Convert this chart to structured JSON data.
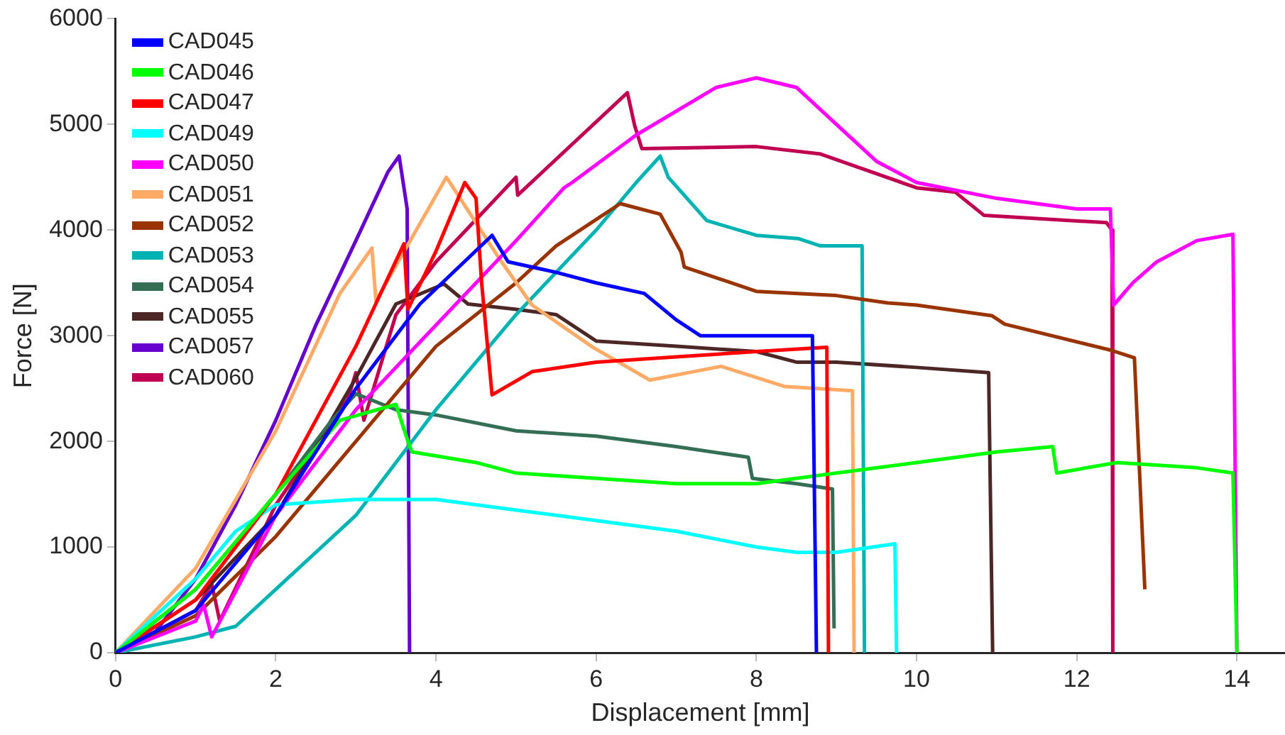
{
  "chart_data": {
    "type": "line",
    "xlabel": "Displacement [mm]",
    "ylabel": "Force [N]",
    "xlim": [
      0,
      14.6
    ],
    "xticks": [
      0,
      2,
      4,
      6,
      8,
      10,
      12,
      14
    ],
    "ylim": [
      0,
      6000
    ],
    "yticks": [
      0,
      1000,
      2000,
      3000,
      4000,
      5000,
      6000
    ],
    "grid": false,
    "legend": "top left",
    "marker": "none",
    "line_style": "solid",
    "series": [
      {
        "name": "CAD045",
        "color": "#0000ff",
        "x": [
          0,
          1,
          2,
          3,
          3.8,
          4.7,
          4.9,
          5.5,
          6,
          6.6,
          7,
          7.3,
          8,
          8.7,
          8.75
        ],
        "values": [
          0,
          400,
          1300,
          2500,
          3300,
          3950,
          3700,
          3600,
          3500,
          3400,
          3150,
          3000,
          3000,
          3000,
          0
        ]
      },
      {
        "name": "CAD046",
        "color": "#00ff00",
        "x": [
          0,
          1,
          2,
          2.8,
          3.5,
          3.65,
          3.7,
          4.5,
          5,
          6,
          7,
          8,
          9,
          10,
          11,
          11.7,
          11.75,
          12.5,
          13.5,
          13.95,
          14
        ],
        "values": [
          0,
          600,
          1500,
          2200,
          2350,
          2000,
          1900,
          1800,
          1700,
          1650,
          1600,
          1600,
          1700,
          1800,
          1900,
          1950,
          1700,
          1800,
          1750,
          1700,
          0
        ]
      },
      {
        "name": "CAD047",
        "color": "#ff0000",
        "x": [
          0,
          1,
          2,
          3,
          3.6,
          3.65,
          4,
          4.36,
          4.5,
          4.57,
          4.7,
          5.2,
          6,
          7,
          8,
          8.88,
          8.9
        ],
        "values": [
          0,
          500,
          1500,
          2900,
          3870,
          3250,
          3800,
          4450,
          4300,
          3500,
          2440,
          2660,
          2750,
          2800,
          2850,
          2890,
          0
        ]
      },
      {
        "name": "CAD049",
        "color": "#00ffff",
        "x": [
          0,
          1,
          1.5,
          2,
          3,
          4,
          5,
          6,
          7,
          8,
          8.5,
          9,
          9.73,
          9.75
        ],
        "values": [
          0,
          700,
          1150,
          1400,
          1450,
          1450,
          1350,
          1250,
          1150,
          1000,
          950,
          950,
          1030,
          0
        ]
      },
      {
        "name": "CAD050",
        "color": "#ff00ff",
        "x": [
          0,
          1,
          1.1,
          1.2,
          2,
          3,
          4,
          5,
          5.6,
          5.7,
          6.5,
          7.5,
          8,
          8.5,
          9,
          9.5,
          10,
          11,
          12,
          12.42,
          12.46,
          12.7,
          13,
          13.5,
          13.95,
          14
        ],
        "values": [
          0,
          300,
          450,
          150,
          1300,
          2300,
          3100,
          3900,
          4400,
          4450,
          4900,
          5350,
          5440,
          5350,
          5000,
          4650,
          4450,
          4300,
          4200,
          4200,
          3290,
          3500,
          3700,
          3900,
          3960,
          0
        ]
      },
      {
        "name": "CAD051",
        "color": "#ffaa66",
        "x": [
          0,
          1,
          2,
          2.8,
          3.2,
          3.25,
          4.13,
          4.79,
          5.2,
          5.96,
          6.67,
          7.56,
          8.35,
          9.2,
          9.22
        ],
        "values": [
          0,
          800,
          2100,
          3400,
          3830,
          3330,
          4500,
          3730,
          3290,
          2890,
          2580,
          2710,
          2520,
          2480,
          0
        ]
      },
      {
        "name": "CAD052",
        "color": "#993300",
        "x": [
          0,
          1,
          2,
          3,
          4,
          5,
          5.5,
          6,
          6.3,
          6.8,
          7.06,
          7.1,
          8,
          9,
          9.64,
          10,
          10.94,
          11.1,
          12.44,
          12.72,
          12.85
        ],
        "values": [
          0,
          350,
          1100,
          2000,
          2900,
          3500,
          3850,
          4100,
          4250,
          4150,
          3790,
          3650,
          3420,
          3380,
          3310,
          3290,
          3190,
          3110,
          2860,
          2790,
          600
        ]
      },
      {
        "name": "CAD053",
        "color": "#00b3b3",
        "x": [
          0,
          1,
          1.5,
          2,
          3,
          4,
          5,
          6,
          6.5,
          6.8,
          6.9,
          7.38,
          8,
          8.52,
          8.8,
          9.32,
          9.35
        ],
        "values": [
          0,
          150,
          250,
          600,
          1300,
          2300,
          3200,
          4000,
          4450,
          4700,
          4500,
          4090,
          3950,
          3920,
          3850,
          3850,
          0
        ]
      },
      {
        "name": "CAD054",
        "color": "#336e55",
        "x": [
          0,
          1,
          2,
          2.7,
          3,
          3.5,
          4,
          5,
          6,
          7,
          7.9,
          7.95,
          8.5,
          8.95,
          8.97
        ],
        "values": [
          0,
          600,
          1500,
          2200,
          2450,
          2300,
          2250,
          2100,
          2050,
          1950,
          1850,
          1650,
          1600,
          1550,
          230
        ]
      },
      {
        "name": "CAD055",
        "color": "#4d2626",
        "x": [
          0,
          1,
          2,
          3,
          3.5,
          4.1,
          4.4,
          5,
          5.5,
          6,
          7,
          8,
          8.5,
          9,
          10,
          10.9,
          10.95
        ],
        "values": [
          0,
          500,
          1300,
          2600,
          3300,
          3490,
          3300,
          3250,
          3200,
          2950,
          2900,
          2850,
          2750,
          2750,
          2700,
          2650,
          0
        ]
      },
      {
        "name": "CAD057",
        "color": "#6600cc",
        "x": [
          0,
          0.5,
          1,
          1.5,
          2,
          2.5,
          3,
          3.4,
          3.54,
          3.64,
          3.67
        ],
        "values": [
          0,
          200,
          700,
          1400,
          2200,
          3100,
          3900,
          4550,
          4700,
          4200,
          0
        ]
      },
      {
        "name": "CAD060",
        "color": "#c00050",
        "x": [
          0,
          1,
          1.2,
          1.3,
          2,
          2.9,
          3,
          3.1,
          3.5,
          4,
          5,
          5.02,
          6.39,
          6.48,
          6.57,
          8,
          8.8,
          10,
          10.48,
          10.84,
          12.37,
          12.44,
          12.45
        ],
        "values": [
          0,
          400,
          650,
          300,
          1400,
          2400,
          2650,
          2200,
          3200,
          3700,
          4500,
          4330,
          5300,
          4990,
          4770,
          4790,
          4720,
          4400,
          4360,
          4140,
          4070,
          4000,
          0
        ]
      }
    ]
  }
}
